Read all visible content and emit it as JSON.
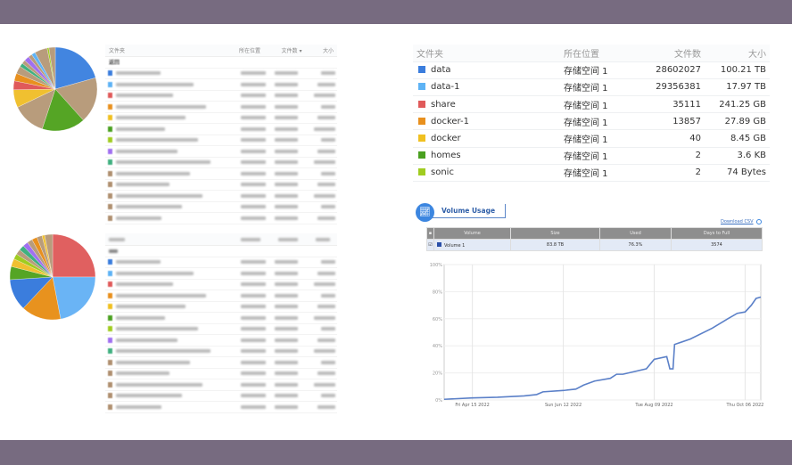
{
  "top_left_table": {
    "headers": [
      "文件夹",
      "所在位置",
      "文件数 ▾",
      "大小"
    ],
    "back_label": "返回",
    "row_colors": [
      "#3b7ddd",
      "#5eb3f5",
      "#e05a5a",
      "#e8901e",
      "#f0c020",
      "#4aa020",
      "#a0cc20",
      "#a070f0",
      "#40b080",
      "#b09070",
      "#b09070",
      "#b09070",
      "#b09070",
      "#b09070"
    ]
  },
  "bottom_left_table": {
    "row_colors": [
      "#3b7ddd",
      "#5eb3f5",
      "#e05a5a",
      "#e8901e",
      "#f0c020",
      "#4aa020",
      "#a0cc20",
      "#a070f0",
      "#40b080",
      "#b09070",
      "#b09070",
      "#b09070",
      "#b09070",
      "#b09070"
    ]
  },
  "pies": [
    {
      "slices": [
        {
          "value": 21,
          "color": "#4285e0"
        },
        {
          "value": 18,
          "color": "#b89c7c"
        },
        {
          "value": 17,
          "color": "#55a525"
        },
        {
          "value": 13,
          "color": "#b89c7c"
        },
        {
          "value": 7,
          "color": "#f0c030"
        },
        {
          "value": 3.5,
          "color": "#e05a5a"
        },
        {
          "value": 3,
          "color": "#e8901e"
        },
        {
          "value": 3,
          "color": "#b89c7c"
        },
        {
          "value": 1.5,
          "color": "#40b080"
        },
        {
          "value": 1.5,
          "color": "#b89c7c"
        },
        {
          "value": 2,
          "color": "#a070f0"
        },
        {
          "value": 1.5,
          "color": "#b89c7c"
        },
        {
          "value": 1.5,
          "color": "#5eb3f5"
        },
        {
          "value": 5,
          "color": "#b89c7c"
        },
        {
          "value": 0.7,
          "color": "#a0cc20"
        },
        {
          "value": 2.5,
          "color": "#b89c7c"
        }
      ]
    },
    {
      "slices": [
        {
          "value": 25,
          "color": "#e06060"
        },
        {
          "value": 22,
          "color": "#6ab4f5"
        },
        {
          "value": 15,
          "color": "#e8921e"
        },
        {
          "value": 12,
          "color": "#3b7ddd"
        },
        {
          "value": 5,
          "color": "#55a525"
        },
        {
          "value": 3,
          "color": "#f0c030"
        },
        {
          "value": 2,
          "color": "#a0cc20"
        },
        {
          "value": 2,
          "color": "#b89c7c"
        },
        {
          "value": 2,
          "color": "#40b080"
        },
        {
          "value": 2,
          "color": "#a070f0"
        },
        {
          "value": 2,
          "color": "#b89c7c"
        },
        {
          "value": 2,
          "color": "#e8901e"
        },
        {
          "value": 2,
          "color": "#b89c7c"
        },
        {
          "value": 1,
          "color": "#f0c030"
        },
        {
          "value": 3,
          "color": "#b89c7c"
        }
      ]
    }
  ],
  "folder_table": {
    "headers": [
      "文件夹",
      "所在位置",
      "文件数",
      "大小"
    ],
    "rows": [
      {
        "name": "data",
        "color": "#3b7ddd",
        "location": "存储空间 1",
        "files": "28602027",
        "size": "100.21 TB"
      },
      {
        "name": "data-1",
        "color": "#5eb3f5",
        "location": "存储空间 1",
        "files": "29356381",
        "size": "17.97 TB"
      },
      {
        "name": "share",
        "color": "#e05a5a",
        "location": "存储空间 1",
        "files": "35111",
        "size": "241.25 GB"
      },
      {
        "name": "docker-1",
        "color": "#e8901e",
        "location": "存储空间 1",
        "files": "13857",
        "size": "27.89 GB"
      },
      {
        "name": "docker",
        "color": "#f0c020",
        "location": "存储空间 1",
        "files": "40",
        "size": "8.45 GB"
      },
      {
        "name": "homes",
        "color": "#4aa020",
        "location": "存储空间 1",
        "files": "2",
        "size": "3.6 KB"
      },
      {
        "name": "sonic",
        "color": "#a0cc20",
        "location": "存储空间 1",
        "files": "2",
        "size": "74 Bytes"
      }
    ]
  },
  "volume": {
    "title": "Volume Usage",
    "download_csv": "Download CSV",
    "headers": [
      "Volume",
      "Size",
      "Used",
      "Days to Full"
    ],
    "row": {
      "name": "Volume 1",
      "color": "#2a4fa8",
      "size": "83.8 TB",
      "used": "76.3%",
      "days": "3574"
    }
  },
  "chart_data": {
    "type": "line",
    "ylim": [
      0,
      100
    ],
    "y_ticks": [
      "0%",
      "20%",
      "40%",
      "60%",
      "80%",
      "100%"
    ],
    "x_range": [
      "2022-03-28",
      "2022-10-16"
    ],
    "x_ticks": [
      {
        "date": "2022-04-15",
        "label": "Fri Apr 15 2022"
      },
      {
        "date": "2022-06-12",
        "label": "Sun Jun 12 2022"
      },
      {
        "date": "2022-08-09",
        "label": "Tue Aug 09 2022"
      },
      {
        "date": "2022-10-06",
        "label": "Thu Oct 06 2022"
      }
    ],
    "grid": true,
    "line_color": "#5b80c8",
    "series": [
      {
        "points": [
          [
            "2022-03-28",
            0.5
          ],
          [
            "2022-04-15",
            1.5
          ],
          [
            "2022-05-01",
            2
          ],
          [
            "2022-05-18",
            3
          ],
          [
            "2022-05-26",
            4
          ],
          [
            "2022-05-30",
            6
          ],
          [
            "2022-06-12",
            7
          ],
          [
            "2022-06-20",
            8
          ],
          [
            "2022-06-25",
            11
          ],
          [
            "2022-07-02",
            14
          ],
          [
            "2022-07-12",
            16
          ],
          [
            "2022-07-16",
            19
          ],
          [
            "2022-07-20",
            19
          ],
          [
            "2022-08-04",
            23
          ],
          [
            "2022-08-09",
            30
          ],
          [
            "2022-08-17",
            32
          ],
          [
            "2022-08-19",
            23
          ],
          [
            "2022-08-21",
            23
          ],
          [
            "2022-08-22",
            41
          ],
          [
            "2022-09-01",
            45
          ],
          [
            "2022-09-15",
            53
          ],
          [
            "2022-09-25",
            60
          ],
          [
            "2022-10-01",
            64
          ],
          [
            "2022-10-06",
            65
          ],
          [
            "2022-10-10",
            70
          ],
          [
            "2022-10-13",
            75
          ],
          [
            "2022-10-16",
            76
          ]
        ]
      }
    ]
  }
}
